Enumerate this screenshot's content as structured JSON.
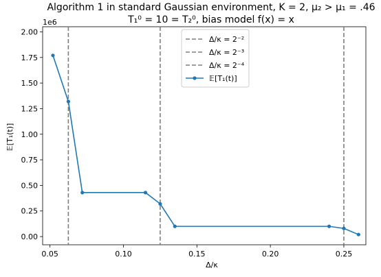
{
  "chart_data": {
    "type": "line",
    "title_line1": "Algorithm 1 in standard Gaussian environment, K = 2, μ₂ > μ₁ = .46",
    "title_line2": "T₁⁰ = 10 = T₂⁰, bias model f(x) = x",
    "xlabel": "Δ/κ",
    "ylabel": "𝔼[T₁(t)]",
    "y_scale_label": "1e6",
    "xlim": [
      0.045,
      0.265
    ],
    "ylim": [
      -0.08,
      2.05
    ],
    "y_units_multiplier": 1000000,
    "x_ticks": [
      0.05,
      0.1,
      0.15,
      0.2,
      0.25
    ],
    "x_tick_labels": [
      "0.05",
      "0.10",
      "0.15",
      "0.20",
      "0.25"
    ],
    "y_ticks": [
      0.0,
      0.25,
      0.5,
      0.75,
      1.0,
      1.25,
      1.5,
      1.75,
      2.0
    ],
    "y_tick_labels": [
      "0.00",
      "0.25",
      "0.50",
      "0.75",
      "1.00",
      "1.25",
      "1.50",
      "1.75",
      "2.00"
    ],
    "vlines": [
      {
        "x": 0.25,
        "label": "Δ/κ = 2⁻²",
        "color": "#7f7f7f",
        "style": "dashed"
      },
      {
        "x": 0.125,
        "label": "Δ/κ = 2⁻³",
        "color": "#7f7f7f",
        "style": "dashed"
      },
      {
        "x": 0.0625,
        "label": "Δ/κ = 2⁻⁴",
        "color": "#7f7f7f",
        "style": "dashed"
      }
    ],
    "series": [
      {
        "name": "𝔼[T₁(t)]",
        "color": "#1f77b4",
        "x": [
          0.052,
          0.0625,
          0.072,
          0.115,
          0.125,
          0.135,
          0.24,
          0.25,
          0.26
        ],
        "y": [
          1.77,
          1.32,
          0.43,
          0.43,
          0.32,
          0.1,
          0.1,
          0.08,
          0.02
        ]
      }
    ],
    "legend_position": "top-center",
    "grid": false
  }
}
